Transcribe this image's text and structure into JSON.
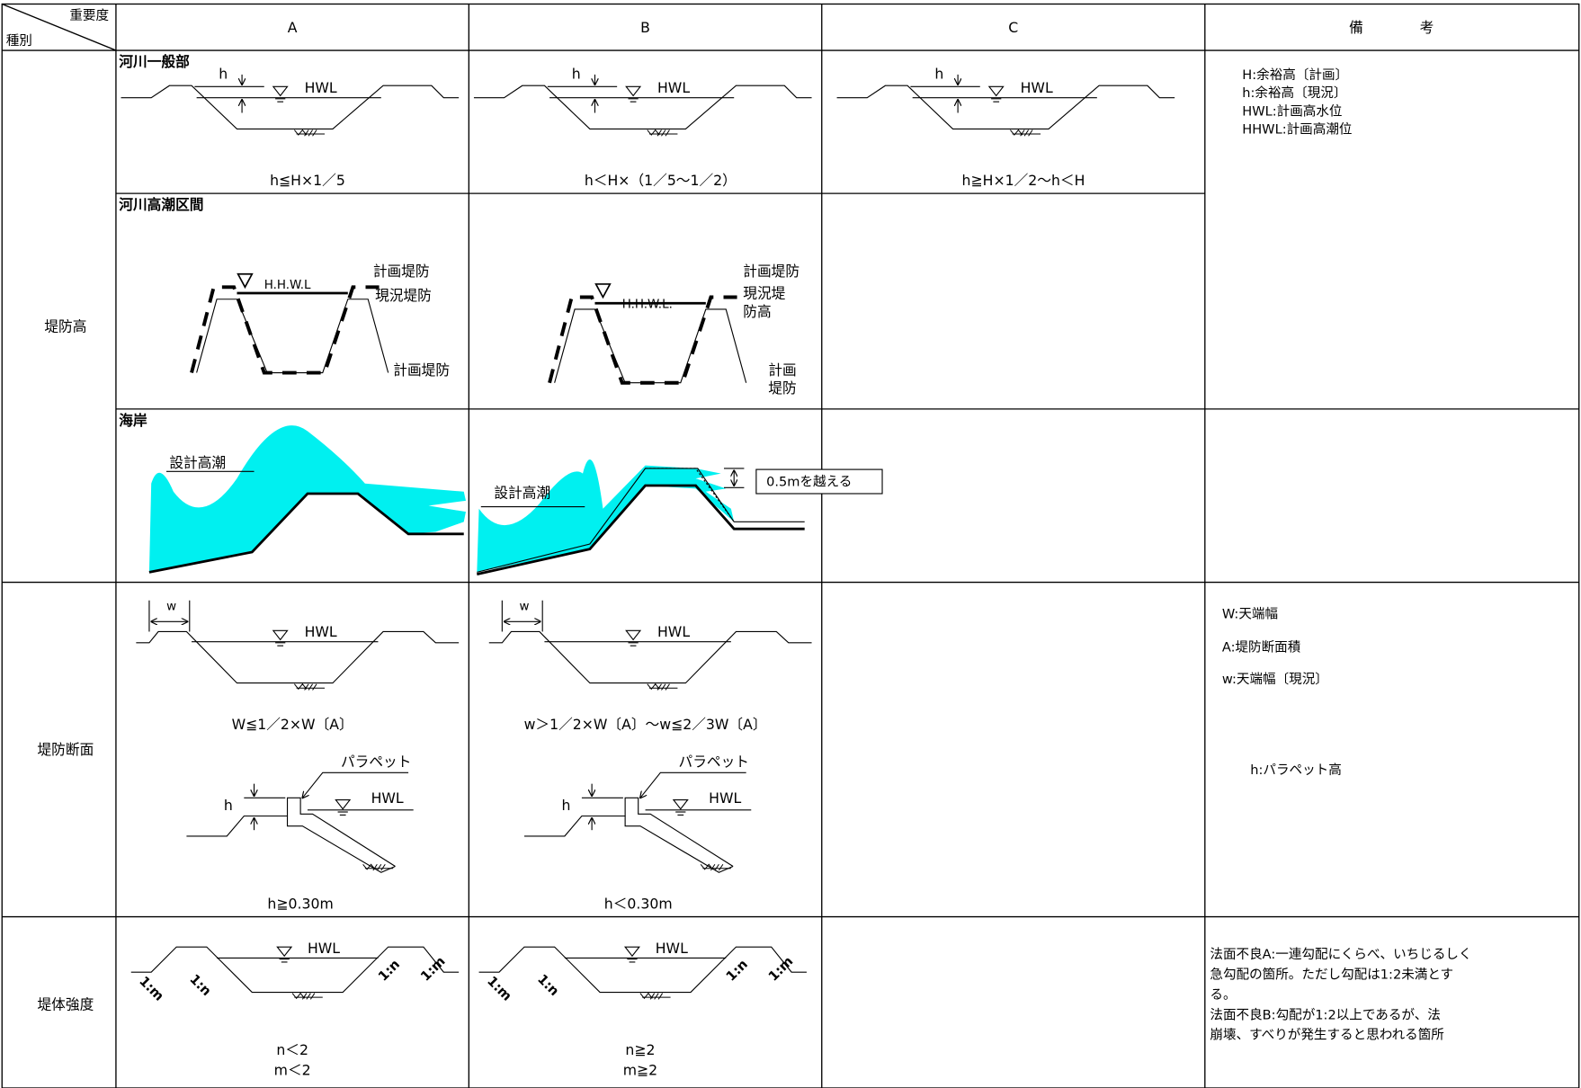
{
  "header": {
    "importance": "重要度",
    "type": "種別",
    "columns": [
      "A",
      "B",
      "C",
      "備　　　　考"
    ]
  },
  "levee_height": {
    "label": "堤防高",
    "river_general": {
      "label": "河川一般部",
      "A": {
        "h": "h",
        "hwl": "HWL",
        "condition": "h≦H×1／5"
      },
      "B": {
        "h": "h",
        "hwl": "HWL",
        "condition": "h＜H×（1／5〜1／2）"
      },
      "C": {
        "h": "h",
        "hwl": "HWL",
        "condition": "h≧H×1／2〜h＜H"
      }
    },
    "notes": [
      "H:余裕高〔計画〕",
      "h:余裕高〔現況〕",
      "HWL:計画高水位",
      "HHWL:計画高潮位"
    ],
    "tidal_section": {
      "label": "河川高潮区間",
      "A": {
        "hhwl": "H.H.W.L",
        "planned_left": "計画堤防",
        "current": "現況堤防",
        "planned_right": "計画堤防"
      },
      "B": {
        "hhwl": "H.H.W.L.",
        "planned_left": "計画堤防",
        "current": [
          "現況堤",
          "防高"
        ],
        "planned_right": [
          "計画",
          "堤防"
        ]
      }
    },
    "coast": {
      "label": "海岸",
      "A": {
        "design_tide": "設計高潮"
      },
      "B": {
        "design_tide": "設計高潮",
        "overtop": "0.5mを越える"
      }
    }
  },
  "levee_section": {
    "label": "堤防断面",
    "width": {
      "A": {
        "w": "w",
        "hwl": "HWL",
        "condition": "W≦1／2×W〔A〕"
      },
      "B": {
        "w": "w",
        "hwl": "HWL",
        "condition": "w＞1／2×W〔A〕〜w≦2／3W〔A〕"
      }
    },
    "parapet": {
      "A": {
        "parapet": "パラペット",
        "h": "h",
        "hwl": "HWL",
        "condition": "h≧0.30m"
      },
      "B": {
        "parapet": "パラペット",
        "h": "h",
        "hwl": "HWL",
        "condition": "h＜0.30m"
      }
    },
    "notes": [
      "W:天端幅",
      "A:堤防断面積",
      "w:天端幅〔現況〕",
      "h:パラペット高"
    ]
  },
  "body_strength": {
    "label": "堤体強度",
    "A": {
      "hwl": "HWL",
      "slopes": [
        "1:m",
        "1:n",
        "1:n",
        "1:m"
      ],
      "conditions": [
        "n＜2",
        "m＜2"
      ]
    },
    "B": {
      "hwl": "HWL",
      "slopes": [
        "1:m",
        "1:n",
        "1:n",
        "1:m"
      ],
      "conditions": [
        "n≧2",
        "m≧2"
      ]
    },
    "notes": [
      "法面不良A:一連勾配にくらべ、いちじるしく",
      "急勾配の箇所。ただし勾配は1:2未満とす",
      "る。",
      "法面不良B:勾配が1:2以上であるが、法",
      "崩壊、すべりが発生すると思われる箇所"
    ]
  }
}
